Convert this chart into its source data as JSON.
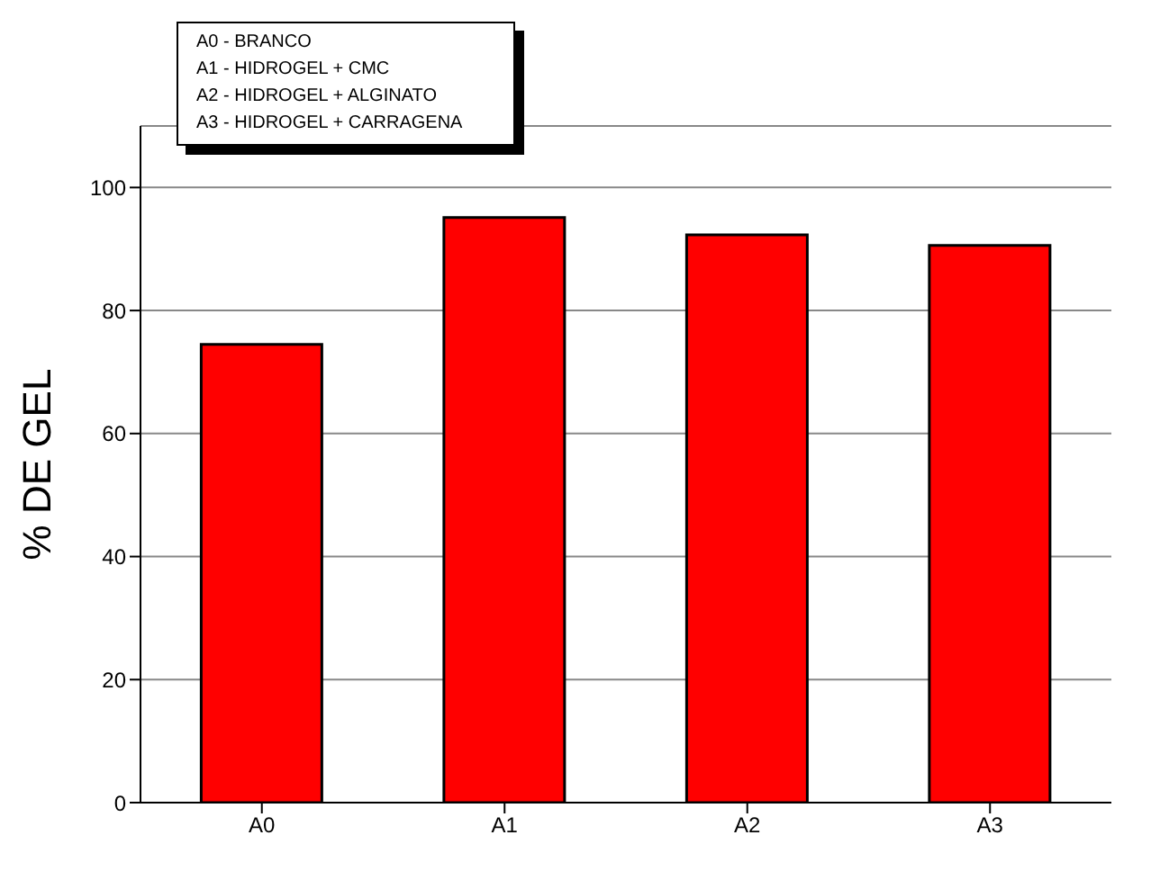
{
  "chart_data": {
    "type": "bar",
    "ylabel": "% DE GEL",
    "categories": [
      "A0",
      "A1",
      "A2",
      "A3"
    ],
    "values": [
      74.5,
      95.1,
      92.3,
      90.6
    ],
    "color": "#ff0000",
    "ylim": [
      0,
      110
    ],
    "yticks": [
      0,
      20,
      40,
      60,
      80,
      100
    ],
    "grid": "y",
    "annotations": [
      "A0 - BRANCO",
      "A1 - HIDROGEL + CMC",
      "A2 - HIDROGEL + ALGINATO",
      "A3 - HIDROGEL + CARRAGENA"
    ]
  }
}
